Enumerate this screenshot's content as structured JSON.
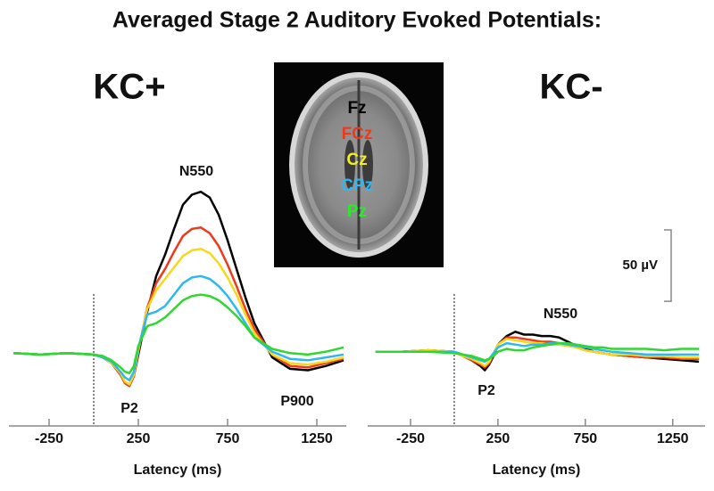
{
  "title": "Averaged Stage 2 Auditory Evoked Potentials:",
  "image": {
    "labels": [
      {
        "text": "Fz",
        "color": "#000000"
      },
      {
        "text": "FCz",
        "color": "#ee3a1c"
      },
      {
        "text": "Cz",
        "color": "#f7ee1a"
      },
      {
        "text": "CPz",
        "color": "#2fb8f0"
      },
      {
        "text": "Pz",
        "color": "#2ee82e"
      }
    ]
  },
  "scale_bar": {
    "value": 50,
    "label": "50 µV"
  },
  "chart_data": [
    {
      "type": "line",
      "title": "KC+",
      "xlabel": "Latency (ms)",
      "xlim": [
        -475,
        1415
      ],
      "ylim": [
        45,
        -136
      ],
      "xticks": [
        -250,
        250,
        750,
        1250
      ],
      "annotations": [
        "N550",
        "P2",
        "P900"
      ],
      "x": [
        -450,
        -300,
        -150,
        0,
        50,
        100,
        150,
        175,
        200,
        225,
        250,
        300,
        350,
        400,
        450,
        500,
        550,
        600,
        650,
        700,
        750,
        800,
        850,
        900,
        1000,
        1100,
        1200,
        1300,
        1400
      ],
      "series": [
        {
          "name": "Fz",
          "color": "#000000",
          "values": [
            -1,
            0,
            -1,
            0,
            2,
            6,
            14,
            20,
            22,
            15,
            0,
            -30,
            -55,
            -70,
            -88,
            -105,
            -112,
            -114,
            -110,
            -98,
            -80,
            -60,
            -40,
            -22,
            2,
            10,
            11,
            8,
            4
          ]
        },
        {
          "name": "FCz",
          "color": "#ee3a1c",
          "values": [
            -1,
            0,
            -1,
            0,
            2,
            6,
            14,
            20,
            22,
            15,
            -2,
            -33,
            -50,
            -60,
            -72,
            -83,
            -88,
            -89,
            -85,
            -76,
            -63,
            -48,
            -32,
            -18,
            0,
            8,
            9,
            6,
            3
          ]
        },
        {
          "name": "Cz",
          "color": "#f7d81a",
          "values": [
            -1,
            0,
            -1,
            0,
            2,
            6,
            13,
            19,
            21,
            14,
            -3,
            -32,
            -45,
            -53,
            -61,
            -69,
            -73,
            -74,
            -71,
            -64,
            -54,
            -42,
            -28,
            -15,
            0,
            6,
            7,
            5,
            2
          ]
        },
        {
          "name": "CPz",
          "color": "#2fb8f0",
          "values": [
            -1,
            0,
            -1,
            0,
            2,
            5,
            12,
            16,
            18,
            12,
            -5,
            -28,
            -30,
            -34,
            -42,
            -50,
            -54,
            -55,
            -53,
            -48,
            -41,
            -32,
            -22,
            -12,
            -2,
            3,
            4,
            2,
            0
          ]
        },
        {
          "name": "Pz",
          "color": "#2ed82e",
          "values": [
            -1,
            0,
            -1,
            0,
            1,
            4,
            9,
            12,
            13,
            8,
            -6,
            -20,
            -22,
            -26,
            -32,
            -38,
            -41,
            -42,
            -41,
            -38,
            -33,
            -27,
            -20,
            -12,
            -4,
            -1,
            0,
            -2,
            -5
          ]
        }
      ]
    },
    {
      "type": "line",
      "title": "KC-",
      "xlabel": "Latency (ms)",
      "xlim": [
        -495,
        1435
      ],
      "ylim": [
        46,
        -135
      ],
      "xticks": [
        -250,
        250,
        750,
        1250
      ],
      "annotations": [
        "N550",
        "P2"
      ],
      "x": [
        -450,
        -300,
        -150,
        0,
        50,
        100,
        150,
        175,
        200,
        225,
        250,
        300,
        350,
        400,
        450,
        500,
        550,
        600,
        650,
        700,
        750,
        800,
        850,
        900,
        1000,
        1100,
        1200,
        1300,
        1400
      ],
      "series": [
        {
          "name": "Fz",
          "color": "#000000",
          "values": [
            -1,
            -1,
            -2,
            -1,
            2,
            5,
            9,
            12,
            8,
            2,
            -6,
            -12,
            -15,
            -13,
            -13,
            -12,
            -12,
            -11,
            -8,
            -5,
            -3,
            -1,
            0,
            1,
            2,
            3,
            4,
            5,
            6
          ]
        },
        {
          "name": "FCz",
          "color": "#ee3a1c",
          "values": [
            -1,
            -1,
            -2,
            -1,
            2,
            5,
            8,
            10,
            7,
            1,
            -6,
            -11,
            -11,
            -10,
            -9,
            -8,
            -8,
            -7,
            -6,
            -4,
            -2,
            -1,
            0,
            1,
            2,
            3,
            3,
            4,
            4
          ]
        },
        {
          "name": "Cz",
          "color": "#f7d81a",
          "values": [
            -1,
            -1,
            -2,
            -1,
            2,
            4,
            7,
            9,
            6,
            0,
            -6,
            -10,
            -9,
            -8,
            -7,
            -7,
            -6,
            -6,
            -5,
            -4,
            -2,
            -1,
            0,
            1,
            1,
            2,
            2,
            3,
            3
          ]
        },
        {
          "name": "CPz",
          "color": "#2fb8f0",
          "values": [
            -1,
            -1,
            -1,
            -1,
            1,
            3,
            5,
            6,
            4,
            0,
            -4,
            -7,
            -6,
            -5,
            -6,
            -6,
            -7,
            -7,
            -6,
            -5,
            -4,
            -3,
            -2,
            -1,
            0,
            1,
            1,
            1,
            1
          ]
        },
        {
          "name": "Pz",
          "color": "#2ed82e",
          "values": [
            -1,
            -1,
            -1,
            0,
            1,
            2,
            4,
            5,
            4,
            2,
            -1,
            -3,
            -2,
            -2,
            -4,
            -5,
            -6,
            -7,
            -7,
            -6,
            -5,
            -4,
            -4,
            -3,
            -3,
            -3,
            -2,
            -3,
            -3
          ]
        }
      ]
    }
  ]
}
